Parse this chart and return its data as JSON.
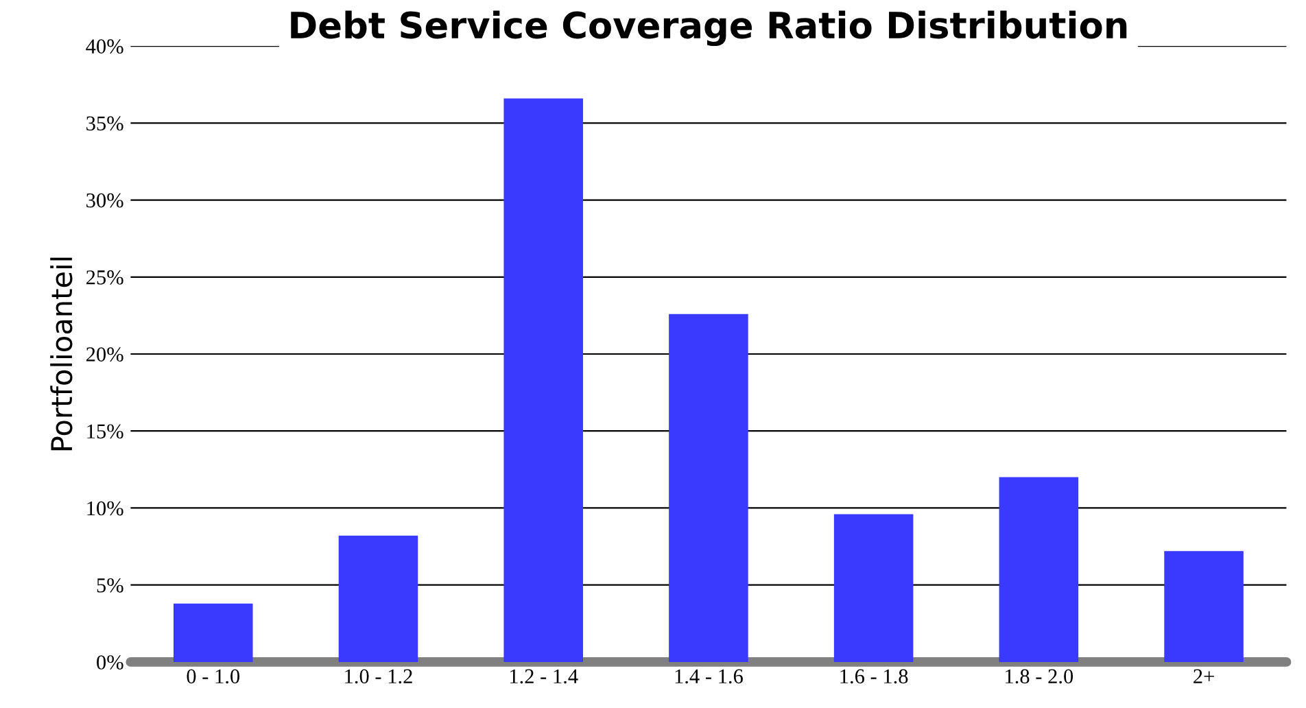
{
  "chart_data": {
    "type": "bar",
    "title": "Debt Service Coverage Ratio Distribution",
    "ylabel": "Portfolioanteil",
    "categories": [
      "0 - 1.0",
      "1.0 - 1.2",
      "1.2 - 1.4",
      "1.4 - 1.6",
      "1.6 - 1.8",
      "1.8 - 2.0",
      "2+"
    ],
    "values": [
      3.8,
      8.2,
      36.6,
      22.6,
      9.6,
      12.0,
      7.2
    ],
    "color": "#3a3aff",
    "ylim": [
      0,
      40
    ],
    "yticks": [
      {
        "value": 0,
        "label": "0%"
      },
      {
        "value": 5,
        "label": "5%"
      },
      {
        "value": 10,
        "label": "10%"
      },
      {
        "value": 15,
        "label": "15%"
      },
      {
        "value": 20,
        "label": "20%"
      },
      {
        "value": 25,
        "label": "25%"
      },
      {
        "value": 30,
        "label": "30%"
      },
      {
        "value": 35,
        "label": "35%"
      },
      {
        "value": 40,
        "label": "40%"
      }
    ],
    "grid": "y",
    "legend": false
  }
}
